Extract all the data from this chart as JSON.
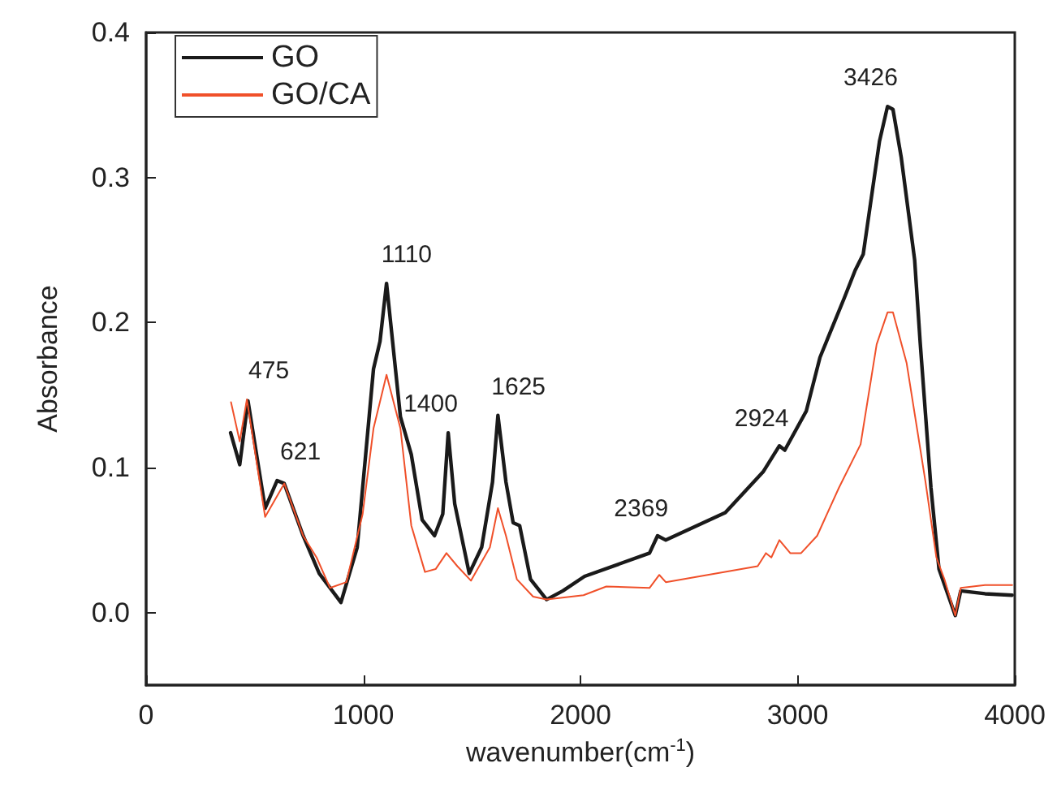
{
  "chart_data": {
    "type": "line",
    "xlabel": "wavenumber(cm$^{-1}$)",
    "ylabel": "Absorbance",
    "xlim": [
      0,
      4000
    ],
    "xticks": [
      0,
      1000,
      2000,
      3000,
      4000
    ],
    "ylim": [
      -0.05,
      0.4
    ],
    "yticks": [
      {
        "value": 0,
        "label": "0.0"
      },
      0.1,
      0.2,
      0.3,
      0.4
    ],
    "grid": false,
    "legend": "top left",
    "marker": "none",
    "line_style": "solid",
    "series": [
      {
        "name": "GO",
        "color": "#1a1a1a",
        "x": [
          389,
          431,
          469,
          548,
          603,
          636,
          723,
          797,
          897,
          972,
          1047,
          1077,
          1107,
          1171,
          1221,
          1271,
          1328,
          1366,
          1391,
          1421,
          1488,
          1545,
          1595,
          1620,
          1657,
          1690,
          1720,
          1770,
          1844,
          1919,
          2019,
          2318,
          2355,
          2393,
          2667,
          2841,
          2916,
          2941,
          3040,
          3103,
          3215,
          3265,
          3302,
          3377,
          3414,
          3439,
          3477,
          3539,
          3564,
          3614,
          3651,
          3726,
          3751,
          3863,
          3988
        ],
        "values": [
          0.124,
          0.102,
          0.146,
          0.072,
          0.091,
          0.089,
          0.053,
          0.027,
          0.007,
          0.045,
          0.168,
          0.187,
          0.227,
          0.135,
          0.109,
          0.064,
          0.053,
          0.068,
          0.124,
          0.075,
          0.027,
          0.045,
          0.09,
          0.136,
          0.09,
          0.062,
          0.06,
          0.023,
          0.009,
          0.015,
          0.025,
          0.041,
          0.053,
          0.05,
          0.069,
          0.097,
          0.115,
          0.112,
          0.139,
          0.176,
          0.217,
          0.236,
          0.247,
          0.325,
          0.349,
          0.347,
          0.314,
          0.243,
          0.187,
          0.086,
          0.03,
          -0.002,
          0.015,
          0.013,
          0.012
        ]
      },
      {
        "name": "GO/CA",
        "color": "#f0502a",
        "x": [
          391,
          431,
          464,
          548,
          636,
          723,
          785,
          847,
          922,
          997,
          1047,
          1107,
          1171,
          1221,
          1284,
          1333,
          1383,
          1433,
          1496,
          1583,
          1620,
          1657,
          1707,
          1782,
          1844,
          2014,
          2119,
          2318,
          2363,
          2393,
          2816,
          2854,
          2879,
          2916,
          2966,
          3016,
          3090,
          3190,
          3290,
          3364,
          3414,
          3439,
          3502,
          3589,
          3639,
          3676,
          3726,
          3751,
          3863,
          3988
        ],
        "values": [
          0.145,
          0.118,
          0.147,
          0.066,
          0.089,
          0.053,
          0.038,
          0.017,
          0.021,
          0.068,
          0.127,
          0.164,
          0.127,
          0.06,
          0.028,
          0.03,
          0.041,
          0.032,
          0.022,
          0.045,
          0.072,
          0.053,
          0.023,
          0.011,
          0.009,
          0.012,
          0.018,
          0.017,
          0.026,
          0.021,
          0.032,
          0.041,
          0.038,
          0.05,
          0.041,
          0.041,
          0.053,
          0.086,
          0.116,
          0.185,
          0.207,
          0.207,
          0.172,
          0.09,
          0.038,
          0.023,
          -0.002,
          0.017,
          0.019,
          0.019
        ]
      }
    ],
    "annotations": [
      {
        "text": "475",
        "x": 475,
        "y": 0.147
      },
      {
        "text": "621",
        "x": 621,
        "y": 0.091
      },
      {
        "text": "1110",
        "x": 1110,
        "y": 0.227
      },
      {
        "text": "1400",
        "x": 1400,
        "y": 0.124
      },
      {
        "text": "1625",
        "x": 1625,
        "y": 0.136
      },
      {
        "text": "2369",
        "x": 2369,
        "y": 0.052
      },
      {
        "text": "2924",
        "x": 2924,
        "y": 0.114
      },
      {
        "text": "3426",
        "x": 3426,
        "y": 0.349
      }
    ]
  }
}
